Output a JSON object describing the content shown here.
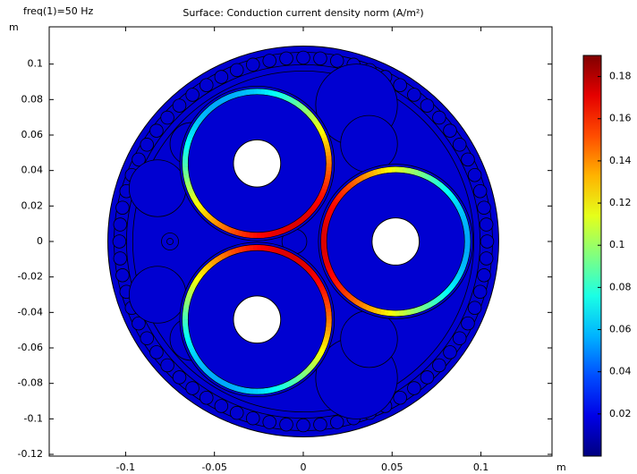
{
  "chart_data": {
    "type": "surface",
    "title": "Surface: Conduction current density norm (A/m²)",
    "subtitle": "freq(1)=50 Hz",
    "x_label": "m",
    "y_label": "m",
    "xlim": [
      -0.143,
      0.14
    ],
    "ylim": [
      -0.121,
      0.121
    ],
    "xticks": [
      -0.1,
      -0.05,
      0,
      0.05,
      0.1
    ],
    "yticks": [
      -0.12,
      -0.1,
      -0.08,
      -0.06,
      -0.04,
      -0.02,
      0,
      0.02,
      0.04,
      0.06,
      0.08,
      0.1
    ],
    "colorbar": {
      "lim": [
        0,
        0.19
      ],
      "ticks": [
        0.02,
        0.04,
        0.06,
        0.08,
        0.1,
        0.12,
        0.14,
        0.16,
        0.18
      ],
      "colormap": "jet"
    }
  }
}
